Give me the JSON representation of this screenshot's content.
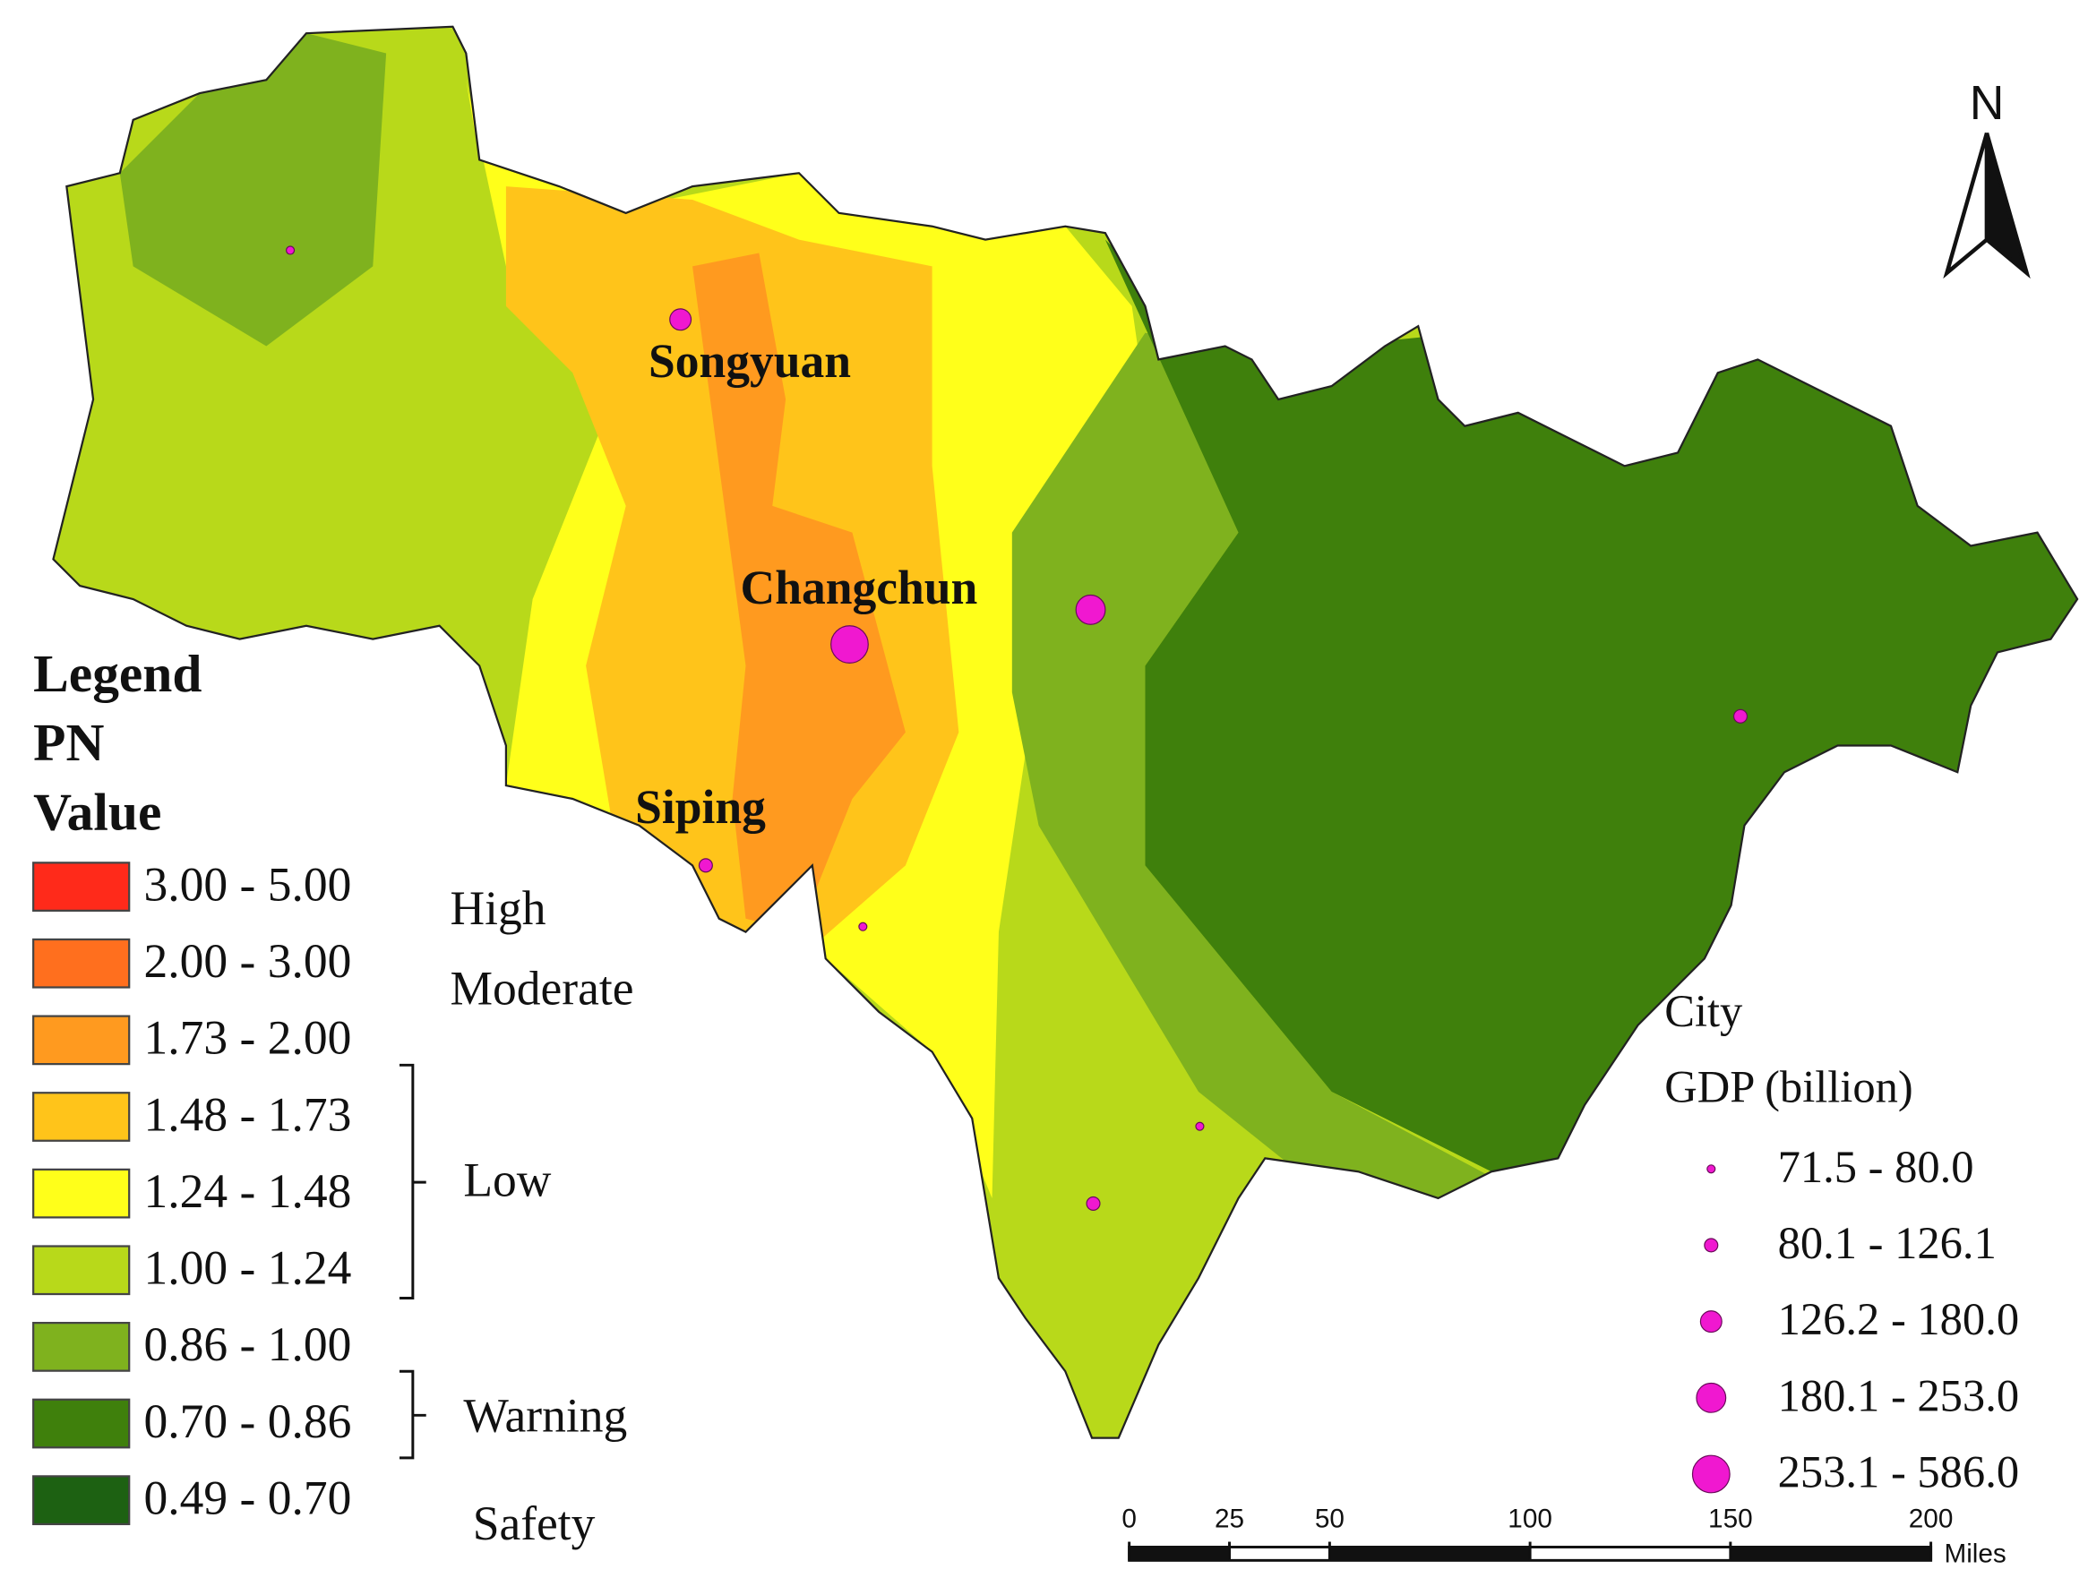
{
  "legend": {
    "title": [
      "Legend",
      "PN",
      "Value"
    ],
    "classes": [
      {
        "label": "3.00 - 5.00",
        "color": "#ff2a1a"
      },
      {
        "label": "2.00 - 3.00",
        "color": "#ff6f1e"
      },
      {
        "label": "1.73 - 2.00",
        "color": "#ff9a1f"
      },
      {
        "label": "1.48 - 1.73",
        "color": "#ffc41a"
      },
      {
        "label": "1.24 - 1.48",
        "color": "#ffff1a"
      },
      {
        "label": "1.00 - 1.24",
        "color": "#b8d91a"
      },
      {
        "label": "0.86 - 1.00",
        "color": "#7fb21e"
      },
      {
        "label": "0.70 - 0.86",
        "color": "#3f800c"
      },
      {
        "label": "0.49 - 0.70",
        "color": "#1d6112"
      }
    ],
    "levels": [
      "High",
      "Moderate",
      "Low",
      "Warning",
      "Safety"
    ]
  },
  "gdp_legend": {
    "title": [
      "City",
      "GDP  (billion)"
    ],
    "classes": [
      "71.5 - 80.0",
      "80.1 - 126.1",
      "126.2 - 180.0",
      "180.1 - 253.0",
      "253.1 - 586.0"
    ],
    "color": "#f018d0"
  },
  "cities": [
    "Songyuan",
    "Changchun",
    "Siping"
  ],
  "north": "N",
  "scale_bar": {
    "ticks": [
      0,
      25,
      50,
      100,
      150,
      200
    ],
    "unit": "Miles"
  }
}
